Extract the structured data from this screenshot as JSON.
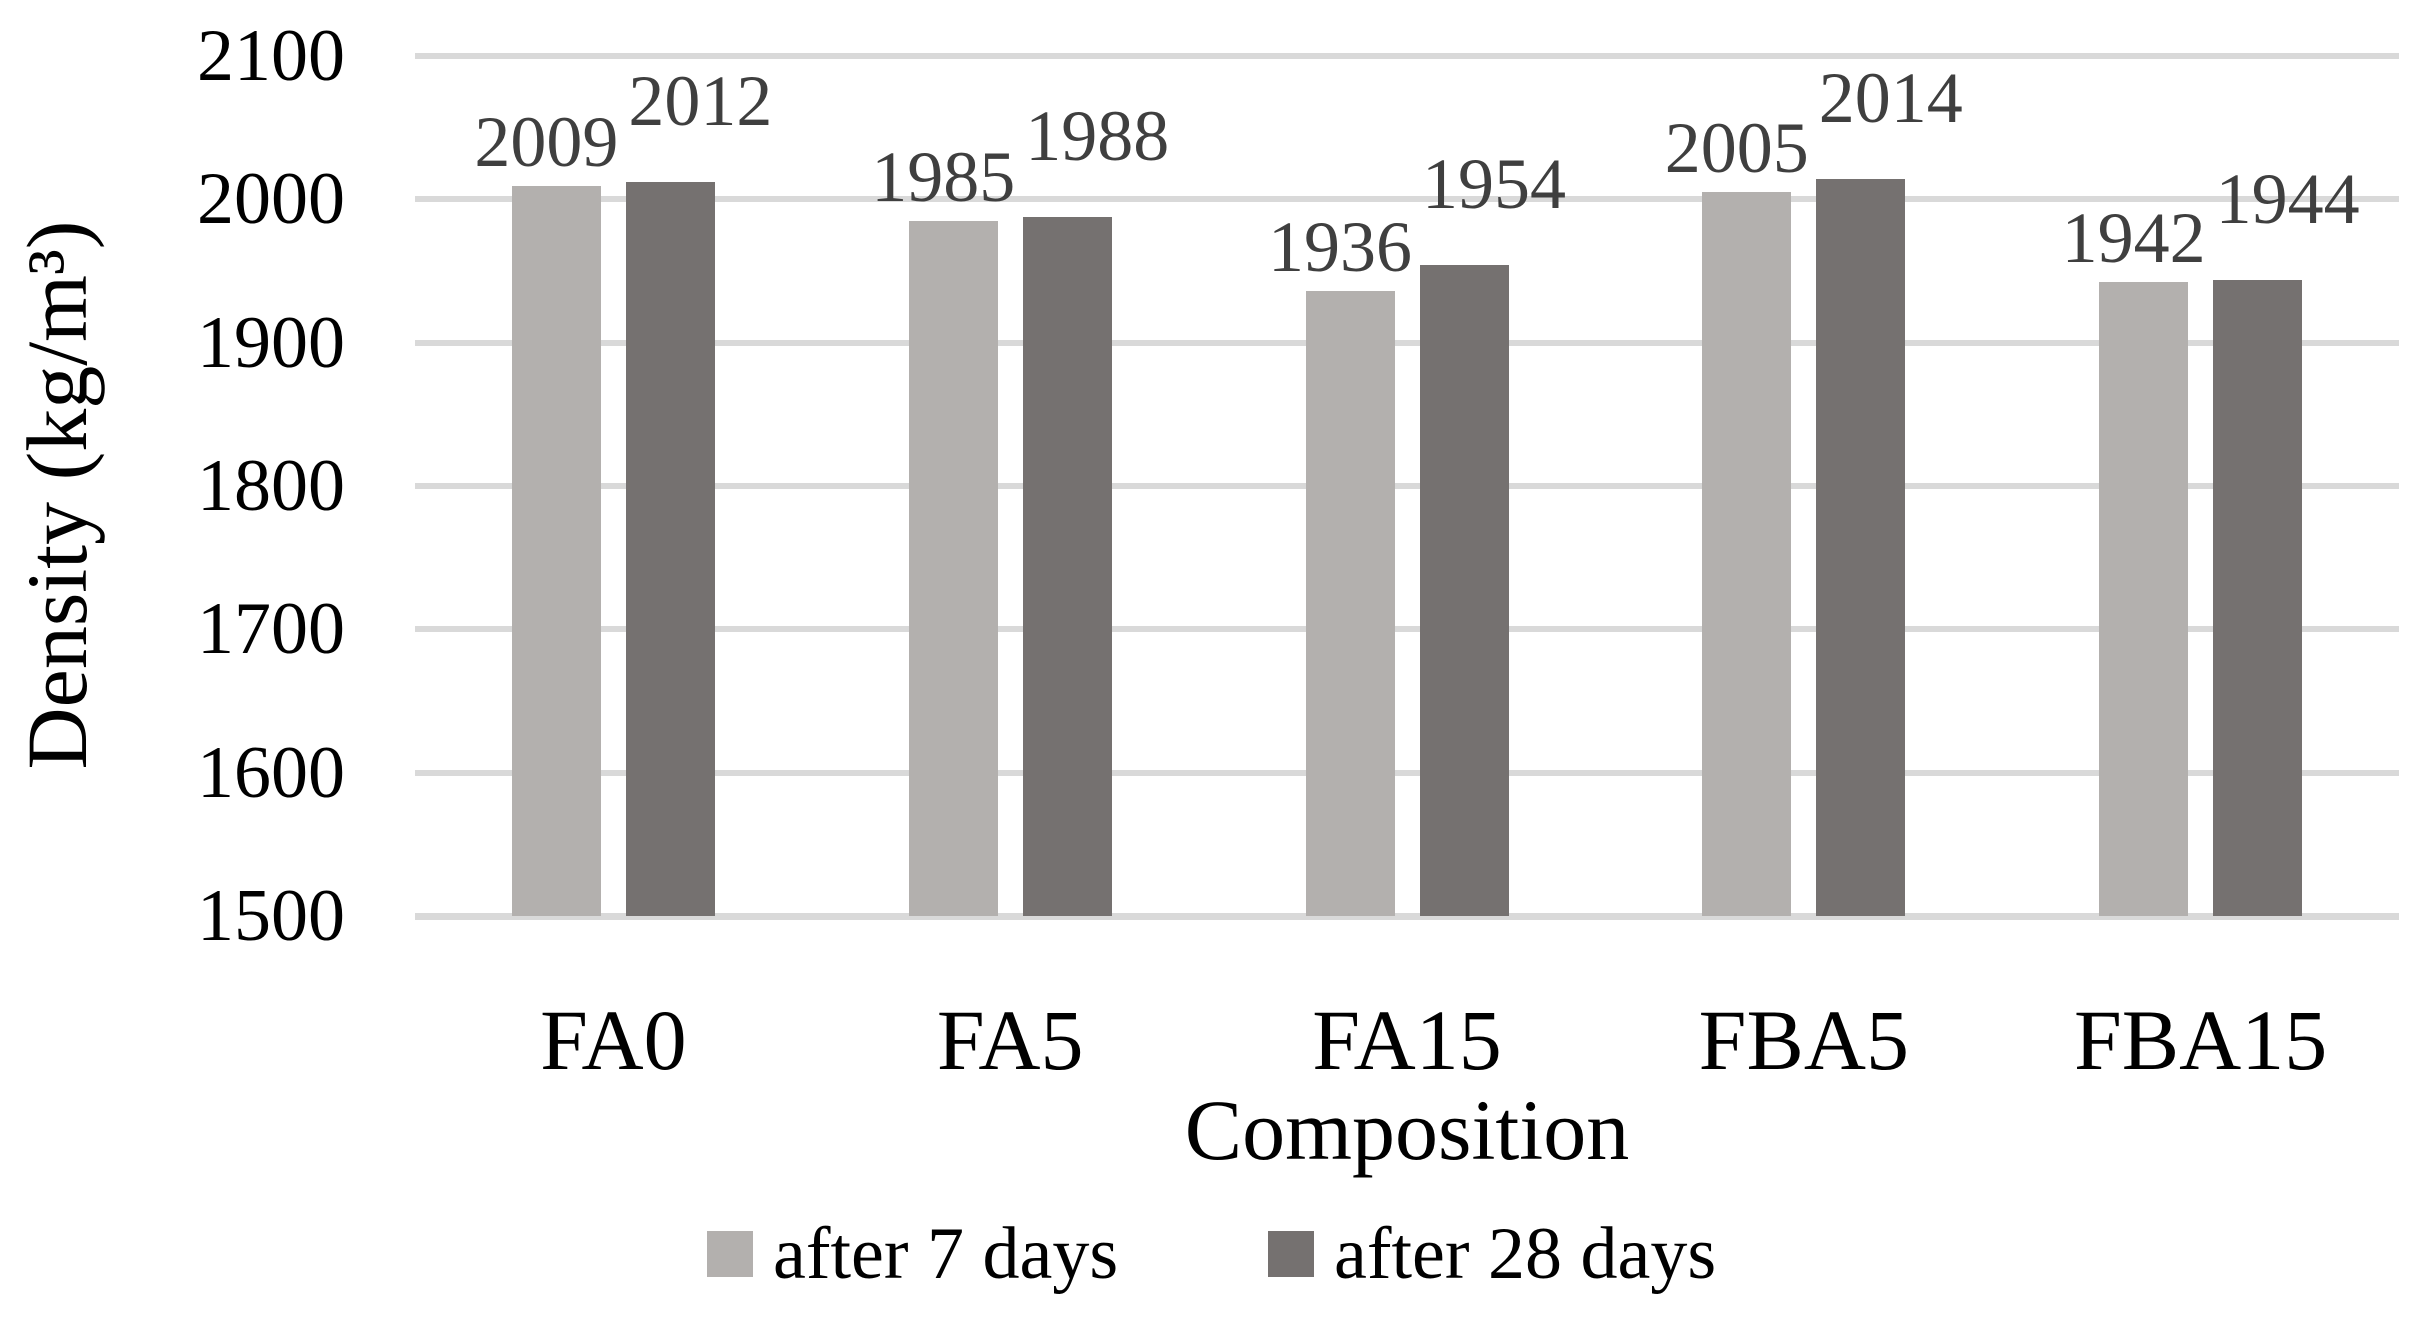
{
  "chart_data": {
    "type": "bar",
    "title": "",
    "xlabel": "Composition",
    "ylabel": "Density (kg/m³)",
    "categories": [
      "FA0",
      "FA5",
      "FA15",
      "FBA5",
      "FBA15"
    ],
    "series": [
      {
        "name": "after 7 days",
        "color": "#b3b0ae",
        "values": [
          2009,
          1985,
          1936,
          2005,
          1942
        ]
      },
      {
        "name": "after 28 days",
        "color": "#757170",
        "values": [
          2012,
          1988,
          1954,
          2014,
          1944
        ]
      }
    ],
    "ylim": [
      1500,
      2100
    ],
    "ytick_step": 100,
    "yticks": [
      1500,
      1600,
      1700,
      1800,
      1900,
      2000,
      2100
    ],
    "grid": "horizontal-only",
    "gridline_color": "#d9d9d9",
    "data_labels": true,
    "data_label_color": "#3f3f3f",
    "legend_position": "bottom",
    "axis_line": "bottom-only"
  }
}
